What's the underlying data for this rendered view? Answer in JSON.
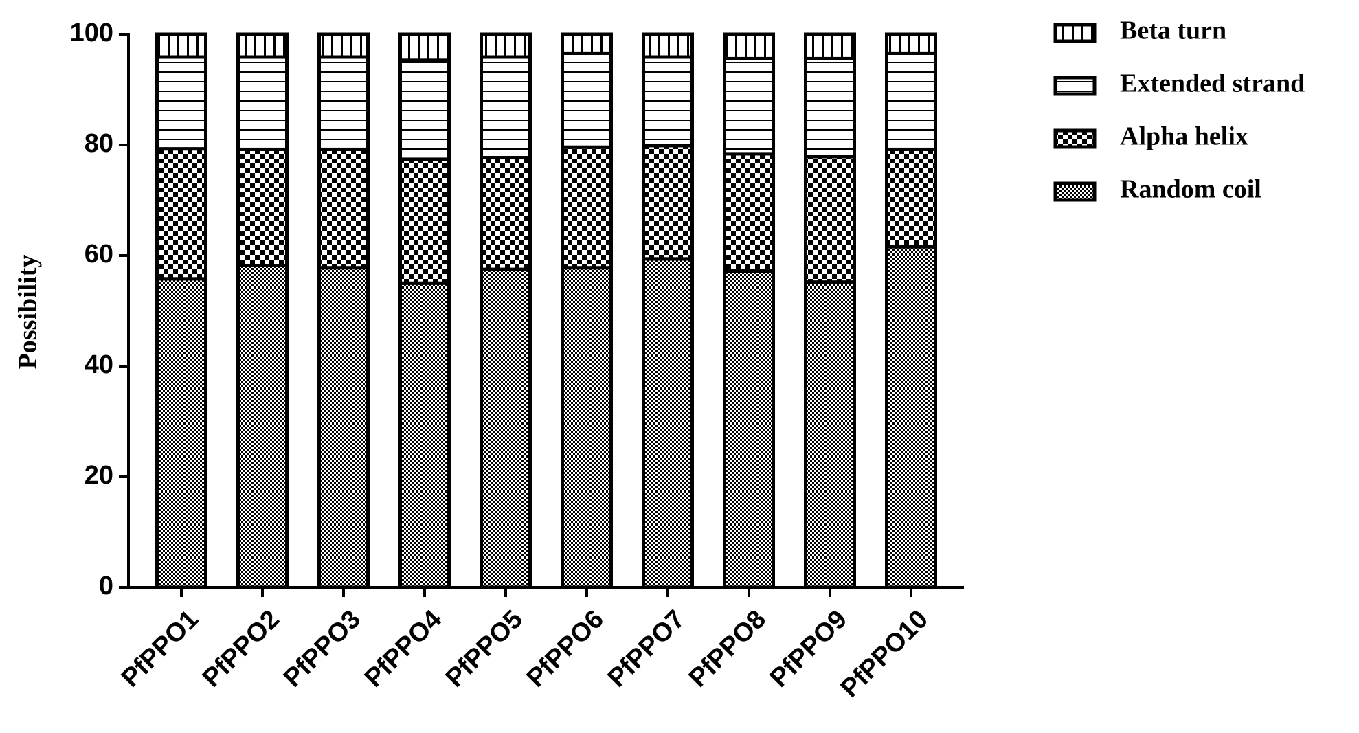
{
  "chart_data": {
    "type": "stacked-bar",
    "y_label": "Possibility",
    "categories": [
      "PfPPO1",
      "PfPPO2",
      "PfPPO3",
      "PfPPO4",
      "PfPPO5",
      "PfPPO6",
      "PfPPO7",
      "PfPPO8",
      "PfPPO9",
      "PfPPO10"
    ],
    "series": [
      {
        "name": "Random coil",
        "color": "#000000",
        "pattern": "fine-checker",
        "values": [
          55.8,
          58.2,
          57.8,
          55.0,
          57.5,
          57.8,
          59.4,
          57.2,
          55.2,
          61.6
        ]
      },
      {
        "name": "Alpha helix",
        "color": "#000000",
        "pattern": "coarse-checker",
        "values": [
          23.5,
          21.0,
          21.4,
          22.4,
          20.2,
          21.8,
          20.5,
          21.2,
          22.7,
          17.6
        ]
      },
      {
        "name": "Extended strand",
        "color": "#000000",
        "pattern": "horizontal-lines",
        "values": [
          16.6,
          16.7,
          16.7,
          17.9,
          18.2,
          17.0,
          16.0,
          17.2,
          17.7,
          17.4
        ]
      },
      {
        "name": "Beta turn",
        "color": "#000000",
        "pattern": "grid",
        "values": [
          4.1,
          4.1,
          4.1,
          4.7,
          4.1,
          3.4,
          4.1,
          4.4,
          4.4,
          3.4
        ]
      }
    ],
    "ylim": [
      0,
      100
    ],
    "yticks": [
      0,
      20,
      40,
      60,
      80,
      100
    ],
    "legend": "top-right-outside",
    "grid": false
  }
}
